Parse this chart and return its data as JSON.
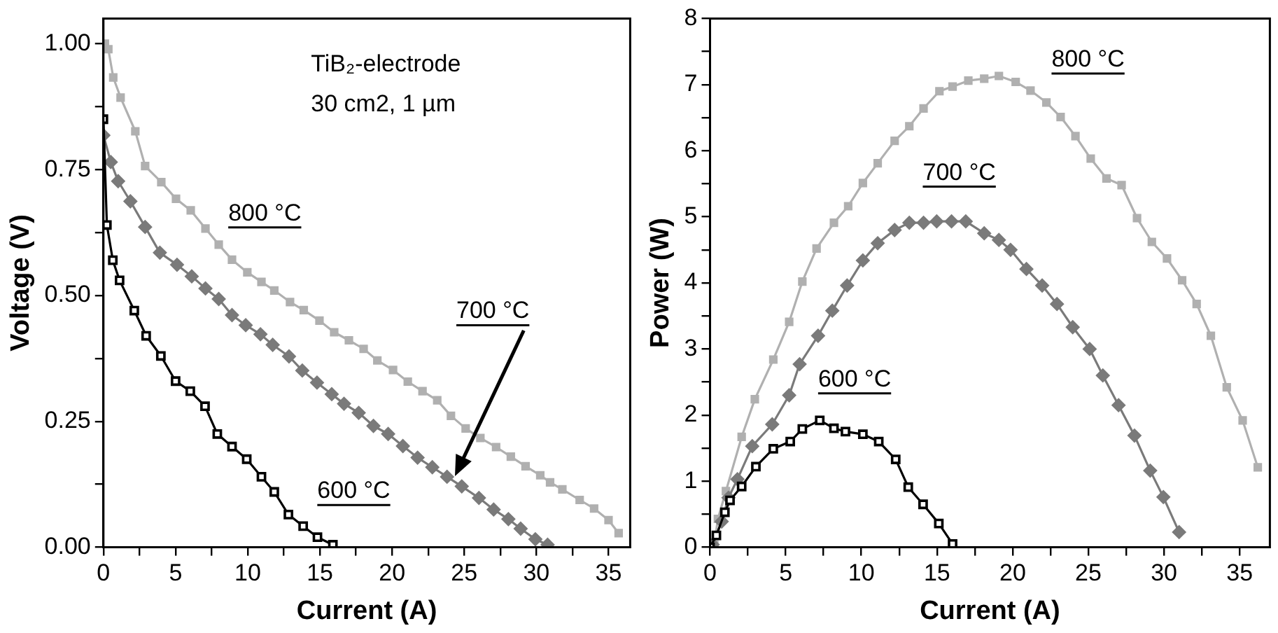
{
  "chart_data": [
    {
      "type": "line",
      "xlabel": "Current (A)",
      "ylabel": "Voltage (V)",
      "xlim": [
        0,
        36.5
      ],
      "ylim": [
        0,
        1.05
      ],
      "xticks": [
        0,
        {
          "value": 2.5,
          "label": null
        },
        5,
        {
          "value": 7.5,
          "label": null
        },
        10,
        {
          "value": 12.5,
          "label": null
        },
        15,
        {
          "value": 17.5,
          "label": null
        },
        20,
        {
          "value": 22.5,
          "label": null
        },
        25,
        {
          "value": 27.5,
          "label": null
        },
        30,
        {
          "value": 32.5,
          "label": null
        },
        35
      ],
      "yticks": [
        {
          "value": 0,
          "label": "0.00"
        },
        {
          "value": 0.125,
          "label": null
        },
        0.25,
        {
          "value": 0.375,
          "label": null
        },
        {
          "value": 0.5,
          "label": "0.50"
        },
        {
          "value": 0.625,
          "label": null
        },
        0.75,
        {
          "value": 0.875,
          "label": null
        },
        {
          "value": 1,
          "label": "1.00"
        }
      ],
      "grid": false,
      "legend": false,
      "series": [
        {
          "color": "#000000",
          "marker": "square",
          "x": [
            0,
            0.24,
            0.65,
            1.12,
            2.14,
            2.96,
            3.98,
            5.0,
            6.02,
            7.04,
            7.89,
            8.91,
            9.93,
            10.95,
            11.84,
            12.82,
            13.84,
            14.83,
            15.9
          ],
          "values": [
            0.85,
            0.64,
            0.57,
            0.53,
            0.47,
            0.42,
            0.38,
            0.33,
            0.31,
            0.28,
            0.225,
            0.2,
            0.175,
            0.14,
            0.11,
            0.065,
            0.042,
            0.02,
            0.005
          ]
        },
        {
          "color": "#7a7a7a",
          "marker": "diamond",
          "x": [
            0,
            0.51,
            1.02,
            1.87,
            2.89,
            3.91,
            5.1,
            6.12,
            7.07,
            7.99,
            8.91,
            9.86,
            10.88,
            11.73,
            12.86,
            13.78,
            14.8,
            15.82,
            16.67,
            17.69,
            18.71,
            19.73,
            20.75,
            21.77,
            22.79,
            23.81,
            24.83,
            26.02,
            27.04,
            28.06,
            28.91,
            29.93,
            30.78
          ],
          "values": [
            0.818,
            0.765,
            0.727,
            0.687,
            0.636,
            0.585,
            0.561,
            0.538,
            0.514,
            0.493,
            0.461,
            0.441,
            0.423,
            0.402,
            0.379,
            0.351,
            0.327,
            0.304,
            0.285,
            0.267,
            0.241,
            0.225,
            0.201,
            0.178,
            0.159,
            0.14,
            0.121,
            0.098,
            0.075,
            0.056,
            0.037,
            0.016,
            0.005
          ]
        },
        {
          "color": "#b0b0b0",
          "marker": "square",
          "x": [
            0.1,
            0.34,
            0.68,
            1.19,
            2.21,
            2.89,
            4.01,
            5.03,
            6.05,
            7.07,
            7.99,
            8.91,
            9.97,
            10.95,
            11.84,
            12.93,
            13.88,
            14.97,
            15.99,
            17.01,
            18.03,
            18.98,
            20.07,
            21.09,
            22.11,
            23.13,
            24.08,
            25.1,
            26.12,
            27.21,
            28.23,
            29.25,
            30.27,
            30.95,
            31.8,
            33.0,
            34.0,
            35.0,
            35.7
          ],
          "values": [
            1.0,
            0.989,
            0.933,
            0.893,
            0.826,
            0.757,
            0.725,
            0.692,
            0.669,
            0.633,
            0.601,
            0.571,
            0.546,
            0.527,
            0.51,
            0.487,
            0.471,
            0.45,
            0.427,
            0.411,
            0.394,
            0.371,
            0.352,
            0.329,
            0.31,
            0.292,
            0.261,
            0.236,
            0.217,
            0.199,
            0.18,
            0.161,
            0.143,
            0.129,
            0.115,
            0.094,
            0.077,
            0.054,
            0.028
          ]
        }
      ],
      "annotations": [
        "TiB₂-electrode",
        "30 cm2, 1 µm",
        "800 °C",
        "700 °C",
        "600 °C"
      ]
    },
    {
      "type": "line",
      "xlabel": "Current (A)",
      "ylabel": "Power (W)",
      "xlim": [
        0,
        37
      ],
      "ylim": [
        0,
        8
      ],
      "xticks": [
        0,
        {
          "value": 2.5,
          "label": null
        },
        5,
        {
          "value": 7.5,
          "label": null
        },
        10,
        {
          "value": 12.5,
          "label": null
        },
        15,
        {
          "value": 17.5,
          "label": null
        },
        20,
        {
          "value": 22.5,
          "label": null
        },
        25,
        {
          "value": 27.5,
          "label": null
        },
        30,
        {
          "value": 32.5,
          "label": null
        },
        35
      ],
      "yticks": [
        0,
        {
          "value": 0.5,
          "label": null
        },
        1,
        {
          "value": 1.5,
          "label": null
        },
        2,
        {
          "value": 2.5,
          "label": null
        },
        3,
        {
          "value": 3.5,
          "label": null
        },
        4,
        {
          "value": 4.5,
          "label": null
        },
        5,
        {
          "value": 5.5,
          "label": null
        },
        6,
        {
          "value": 6.5,
          "label": null
        },
        7,
        {
          "value": 7.5,
          "label": null
        },
        8
      ],
      "grid": false,
      "legend": false,
      "series": [
        {
          "color": "#000000",
          "marker": "square",
          "x": [
            0,
            0.42,
            0.98,
            1.32,
            2.09,
            3.03,
            4.18,
            5.3,
            6.1,
            7.25,
            8.19,
            8.95,
            10.1,
            11.15,
            12.27,
            13.1,
            14.08,
            15.12,
            16.03
          ],
          "values": [
            0,
            0.18,
            0.53,
            0.71,
            0.92,
            1.22,
            1.49,
            1.6,
            1.79,
            1.92,
            1.8,
            1.75,
            1.71,
            1.6,
            1.33,
            0.91,
            0.65,
            0.36,
            0.05
          ]
        },
        {
          "color": "#7a7a7a",
          "marker": "diamond",
          "x": [
            0.17,
            0.77,
            1.22,
            1.81,
            2.79,
            4.11,
            5.23,
            5.92,
            7.14,
            8.08,
            9.06,
            10.1,
            11.08,
            12.2,
            13.17,
            14.11,
            14.98,
            15.96,
            16.9,
            18.12,
            19.09,
            19.86,
            20.91,
            21.95,
            22.93,
            23.97,
            25.09,
            25.96,
            27.0,
            28.05,
            29.09,
            29.96,
            31.0
          ],
          "values": [
            0.04,
            0.39,
            0.75,
            1.03,
            1.53,
            1.86,
            2.3,
            2.77,
            3.2,
            3.58,
            3.96,
            4.34,
            4.6,
            4.8,
            4.91,
            4.91,
            4.93,
            4.93,
            4.93,
            4.75,
            4.65,
            4.5,
            4.21,
            3.96,
            3.68,
            3.33,
            3.0,
            2.6,
            2.15,
            1.69,
            1.16,
            0.76,
            0.23
          ]
        },
        {
          "color": "#b0b0b0",
          "marker": "square",
          "x": [
            0.28,
            0.52,
            1.05,
            2.09,
            2.96,
            4.18,
            5.23,
            6.1,
            7.04,
            8.19,
            9.13,
            10.1,
            11.08,
            12.2,
            13.17,
            14.11,
            15.16,
            16.03,
            17.07,
            18.12,
            19.09,
            20.2,
            21.18,
            22.23,
            23.17,
            24.15,
            25.16,
            26.2,
            27.2,
            28.22,
            29.2,
            30.2,
            31.2,
            32.16,
            33.1,
            34.15,
            35.2,
            36.2
          ],
          "values": [
            0.04,
            0.43,
            0.85,
            1.67,
            2.24,
            2.84,
            3.41,
            4.02,
            4.52,
            4.91,
            5.16,
            5.51,
            5.81,
            6.15,
            6.37,
            6.64,
            6.9,
            6.97,
            7.06,
            7.09,
            7.13,
            7.04,
            6.91,
            6.73,
            6.51,
            6.22,
            5.88,
            5.58,
            5.48,
            4.98,
            4.62,
            4.37,
            4.04,
            3.68,
            3.2,
            2.42,
            1.92,
            1.21
          ]
        }
      ],
      "annotations": [
        "800 °C",
        "700 °C",
        "600 °C"
      ]
    }
  ]
}
